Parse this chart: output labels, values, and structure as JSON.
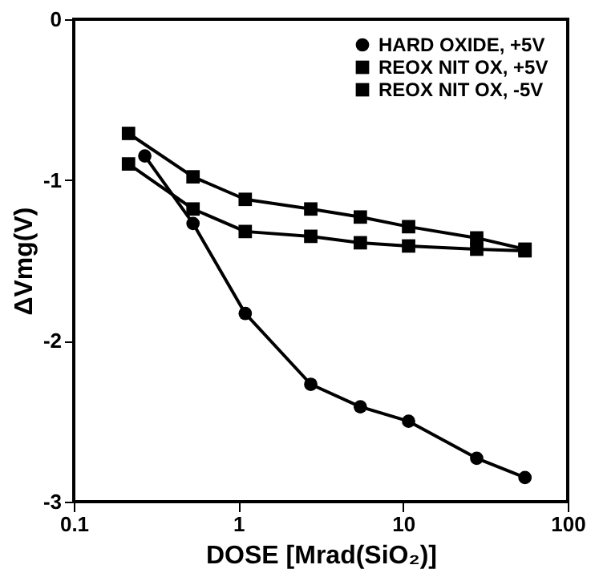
{
  "chart_data": {
    "type": "line",
    "xlabel": "DOSE [Mrad(SiO₂)]",
    "ylabel": "ΔVmg(V)",
    "log": "x",
    "xlim": [
      0.1,
      100
    ],
    "xticks": [
      0.1,
      1,
      10,
      100
    ],
    "ylim": [
      -3,
      0
    ],
    "yticks": [
      -3,
      -2,
      -1,
      0
    ],
    "grid": false,
    "legend": "top right",
    "series": [
      {
        "name": "HARD  OXIDE, +5V",
        "color": "#000000",
        "marker": "circle",
        "x": [
          0.27,
          0.53,
          1.1,
          2.75,
          5.5,
          10.8,
          28,
          55
        ],
        "values": [
          -0.85,
          -1.27,
          -1.83,
          -2.27,
          -2.41,
          -2.5,
          -2.73,
          -2.85
        ]
      },
      {
        "name": "REOX NIT OX, +5V",
        "color": "#000000",
        "marker": "square",
        "x": [
          0.215,
          0.53,
          1.1,
          2.75,
          5.5,
          10.8,
          28,
          55
        ],
        "values": [
          -0.71,
          -0.98,
          -1.12,
          -1.18,
          -1.23,
          -1.29,
          -1.36,
          -1.43
        ]
      },
      {
        "name": "REOX NIT OX, -5V",
        "color": "#000000",
        "marker": "square",
        "x": [
          0.215,
          0.53,
          1.1,
          2.75,
          5.5,
          10.8,
          28,
          55
        ],
        "values": [
          -0.9,
          -1.18,
          -1.32,
          -1.35,
          -1.39,
          -1.41,
          -1.43,
          -1.44
        ]
      }
    ]
  }
}
